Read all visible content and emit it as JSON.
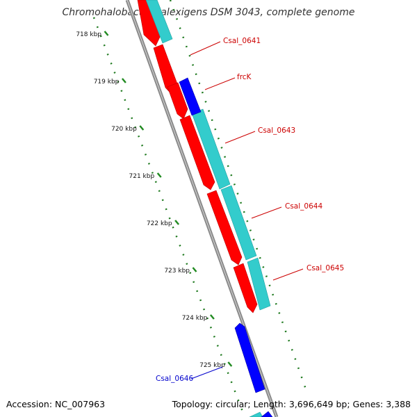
{
  "title": "Chromohalobacter salexigens DSM 3043, complete genome",
  "footer": {
    "accession": "Accession: NC_007963",
    "summary": "Topology: circular; Length: 3,696,649 bp; Genes: 3,388"
  },
  "colors": {
    "cds_forward": "#ff0000",
    "cds_reverse": "#0000ff",
    "gene_track": "#33cccc",
    "backbone": "#888888",
    "tick_green": "#228B22",
    "label_red": "#cc0000",
    "label_blue": "#0000cc"
  },
  "ticks": [
    {
      "position_kbp": 718,
      "label": "718 kbp"
    },
    {
      "position_kbp": 719,
      "label": "719 kbp"
    },
    {
      "position_kbp": 720,
      "label": "720 kbp"
    },
    {
      "position_kbp": 721,
      "label": "721 kbp"
    },
    {
      "position_kbp": 722,
      "label": "722 kbp"
    },
    {
      "position_kbp": 723,
      "label": "723 kbp"
    },
    {
      "position_kbp": 724,
      "label": "724 kbp"
    },
    {
      "position_kbp": 725,
      "label": "725 kbp"
    }
  ],
  "gene_labels": [
    {
      "name": "Csal_0641",
      "color": "#cc0000"
    },
    {
      "name": "frcK",
      "color": "#cc0000"
    },
    {
      "name": "Csal_0643",
      "color": "#cc0000"
    },
    {
      "name": "Csal_0644",
      "color": "#cc0000"
    },
    {
      "name": "Csal_0645",
      "color": "#cc0000"
    },
    {
      "name": "Csal_0646",
      "color": "#0000cc"
    }
  ]
}
